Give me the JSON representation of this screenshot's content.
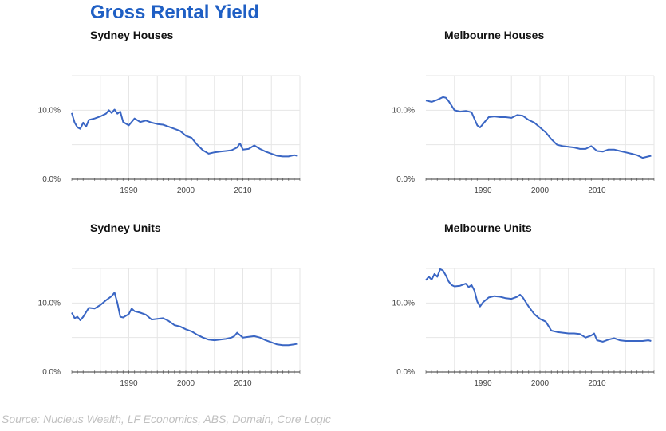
{
  "title": "Gross Rental Yield",
  "source": "Source: Nucleus Wealth, LF Economics, ABS, Domain, Core Logic",
  "colors": {
    "title": "#1f5fc4",
    "line": "#3a66c4",
    "grid": "#e6e6e6",
    "axis": "#333333"
  },
  "chart_data": [
    {
      "type": "line",
      "title": "Sydney Houses",
      "xlabel": "",
      "ylabel": "",
      "xlim": [
        1980,
        2020
      ],
      "ylim": [
        0,
        15
      ],
      "x_ticks": [
        1990,
        2000,
        2010
      ],
      "y_ticks": [
        {
          "value": 0,
          "label": "0.0%"
        },
        {
          "value": 10,
          "label": "10.0%"
        }
      ],
      "grid": true,
      "legend": "none",
      "series": [
        {
          "x": [
            1980,
            1980.5,
            1981,
            1981.5,
            1982,
            1982.5,
            1983,
            1983.5,
            1984,
            1985,
            1986,
            1986.5,
            1987,
            1987.5,
            1988,
            1988.5,
            1989,
            1990,
            1991,
            1992,
            1993,
            1994,
            1995,
            1996,
            1997,
            1998,
            1999,
            2000,
            2001,
            2002,
            2003,
            2004,
            2005,
            2006,
            2007,
            2008,
            2009,
            2009.5,
            2010,
            2011,
            2012,
            2013,
            2014,
            2015,
            2016,
            2017,
            2018,
            2019,
            2019.5
          ],
          "values": [
            9.6,
            8.2,
            7.5,
            7.3,
            8.2,
            7.6,
            8.6,
            8.7,
            8.8,
            9.1,
            9.5,
            10.0,
            9.6,
            10.1,
            9.5,
            9.8,
            8.3,
            7.8,
            8.8,
            8.3,
            8.5,
            8.2,
            8.0,
            7.9,
            7.6,
            7.3,
            7.0,
            6.3,
            6.0,
            5.0,
            4.2,
            3.7,
            3.9,
            4.0,
            4.1,
            4.2,
            4.6,
            5.2,
            4.3,
            4.4,
            4.9,
            4.4,
            4.0,
            3.7,
            3.4,
            3.3,
            3.3,
            3.5,
            3.4
          ]
        }
      ]
    },
    {
      "type": "line",
      "title": "Melbourne Houses",
      "xlabel": "",
      "ylabel": "",
      "xlim": [
        1980,
        2020
      ],
      "ylim": [
        0,
        15
      ],
      "x_ticks": [
        1990,
        2000,
        2010
      ],
      "y_ticks": [
        {
          "value": 0,
          "label": "0.0%"
        },
        {
          "value": 10,
          "label": "10.0%"
        }
      ],
      "grid": true,
      "legend": "none",
      "series": [
        {
          "x": [
            1980,
            1981,
            1982,
            1983,
            1983.5,
            1984,
            1985,
            1986,
            1987,
            1988,
            1989,
            1989.5,
            1990,
            1991,
            1992,
            1993,
            1994,
            1995,
            1996,
            1997,
            1998,
            1999,
            2000,
            2001,
            2002,
            2003,
            2004,
            2005,
            2006,
            2007,
            2008,
            2009,
            2010,
            2011,
            2012,
            2013,
            2014,
            2015,
            2016,
            2017,
            2018,
            2019,
            2019.5
          ],
          "values": [
            11.4,
            11.2,
            11.5,
            11.9,
            11.8,
            11.3,
            10.0,
            9.8,
            9.9,
            9.7,
            7.8,
            7.5,
            8.0,
            9.0,
            9.1,
            9.0,
            9.0,
            8.9,
            9.3,
            9.2,
            8.6,
            8.2,
            7.5,
            6.8,
            5.8,
            5.0,
            4.8,
            4.7,
            4.6,
            4.4,
            4.4,
            4.8,
            4.1,
            4.0,
            4.3,
            4.3,
            4.1,
            3.9,
            3.7,
            3.5,
            3.1,
            3.3,
            3.4
          ]
        }
      ]
    },
    {
      "type": "line",
      "title": "Sydney Units",
      "xlabel": "",
      "ylabel": "",
      "xlim": [
        1980,
        2020
      ],
      "ylim": [
        0,
        15
      ],
      "x_ticks": [
        1990,
        2000,
        2010
      ],
      "y_ticks": [
        {
          "value": 0,
          "label": "0.0%"
        },
        {
          "value": 10,
          "label": "10.0%"
        }
      ],
      "grid": true,
      "legend": "none",
      "series": [
        {
          "x": [
            1980,
            1980.5,
            1981,
            1981.5,
            1982,
            1983,
            1984,
            1985,
            1986,
            1987,
            1987.5,
            1988,
            1988.5,
            1989,
            1990,
            1990.5,
            1991,
            1992,
            1993,
            1994,
            1995,
            1996,
            1997,
            1998,
            1999,
            2000,
            2001,
            2002,
            2003,
            2004,
            2005,
            2006,
            2007,
            2008,
            2008.5,
            2009,
            2010,
            2011,
            2012,
            2013,
            2014,
            2015,
            2016,
            2017,
            2018,
            2019,
            2019.5
          ],
          "values": [
            8.6,
            7.8,
            8.0,
            7.5,
            8.0,
            9.3,
            9.2,
            9.7,
            10.4,
            11.0,
            11.5,
            10.0,
            8.0,
            7.9,
            8.4,
            9.2,
            8.8,
            8.6,
            8.3,
            7.6,
            7.7,
            7.8,
            7.4,
            6.8,
            6.6,
            6.2,
            5.9,
            5.4,
            5.0,
            4.7,
            4.6,
            4.7,
            4.8,
            5.0,
            5.2,
            5.7,
            5.0,
            5.1,
            5.2,
            5.0,
            4.6,
            4.3,
            4.0,
            3.9,
            3.9,
            4.0,
            4.1
          ]
        }
      ]
    },
    {
      "type": "line",
      "title": "Melbourne Units",
      "xlabel": "",
      "ylabel": "",
      "xlim": [
        1980,
        2020
      ],
      "ylim": [
        0,
        15
      ],
      "x_ticks": [
        1990,
        2000,
        2010
      ],
      "y_ticks": [
        {
          "value": 0,
          "label": "0.0%"
        },
        {
          "value": 10,
          "label": "10.0%"
        }
      ],
      "grid": true,
      "legend": "none",
      "series": [
        {
          "x": [
            1980,
            1980.5,
            1981,
            1981.5,
            1982,
            1982.5,
            1983,
            1983.5,
            1984,
            1984.5,
            1985,
            1986,
            1987,
            1987.5,
            1988,
            1988.5,
            1989,
            1989.5,
            1990,
            1991,
            1992,
            1993,
            1994,
            1995,
            1996,
            1996.5,
            1997,
            1998,
            1999,
            2000,
            2001,
            2002,
            2003,
            2004,
            2005,
            2006,
            2007,
            2008,
            2009,
            2009.5,
            2010,
            2011,
            2012,
            2013,
            2014,
            2015,
            2016,
            2017,
            2018,
            2019,
            2019.5
          ],
          "values": [
            13.3,
            13.8,
            13.4,
            14.2,
            13.8,
            14.9,
            14.7,
            14.0,
            13.1,
            12.6,
            12.4,
            12.5,
            12.8,
            12.3,
            12.6,
            11.8,
            10.2,
            9.5,
            10.1,
            10.8,
            11.0,
            10.9,
            10.7,
            10.6,
            10.9,
            11.2,
            10.8,
            9.5,
            8.4,
            7.7,
            7.3,
            6.0,
            5.8,
            5.7,
            5.6,
            5.6,
            5.5,
            5.0,
            5.3,
            5.6,
            4.6,
            4.4,
            4.7,
            4.9,
            4.6,
            4.5,
            4.5,
            4.5,
            4.5,
            4.6,
            4.5
          ]
        }
      ]
    }
  ]
}
